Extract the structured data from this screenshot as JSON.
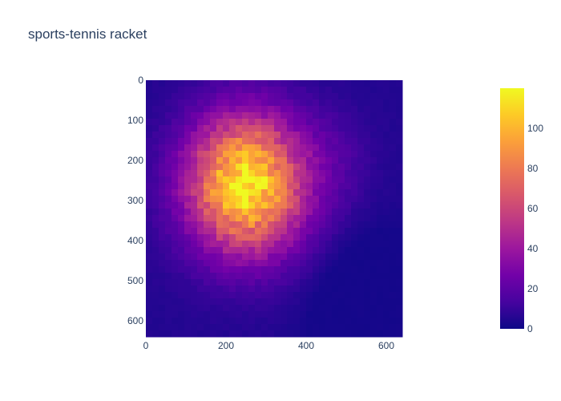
{
  "chart_data": {
    "type": "heatmap",
    "title": "sports-tennis racket",
    "xlabel": "",
    "ylabel": "",
    "xlim": [
      0,
      640
    ],
    "ylim": [
      640,
      0
    ],
    "x_ticks": [
      "0",
      "200",
      "400",
      "600"
    ],
    "x_tick_values": [
      0,
      200,
      400,
      600
    ],
    "y_ticks": [
      "0",
      "100",
      "200",
      "300",
      "400",
      "500",
      "600"
    ],
    "y_tick_values": [
      0,
      100,
      200,
      300,
      400,
      500,
      600
    ],
    "colorbar": {
      "range": [
        0,
        120
      ],
      "ticks": [
        "0",
        "20",
        "40",
        "60",
        "80",
        "100"
      ],
      "tick_values": [
        0,
        20,
        40,
        60,
        80,
        100
      ],
      "colorscale": [
        "#0d0887",
        "#46039f",
        "#7201a8",
        "#9c179e",
        "#bd3786",
        "#d8576b",
        "#ed7953",
        "#fb9f3a",
        "#fdca26",
        "#f0f921"
      ]
    },
    "grid": false,
    "description_of_field": {
      "peak_center": [
        250,
        260
      ],
      "peak_value": 120,
      "background_value": 5
    }
  }
}
